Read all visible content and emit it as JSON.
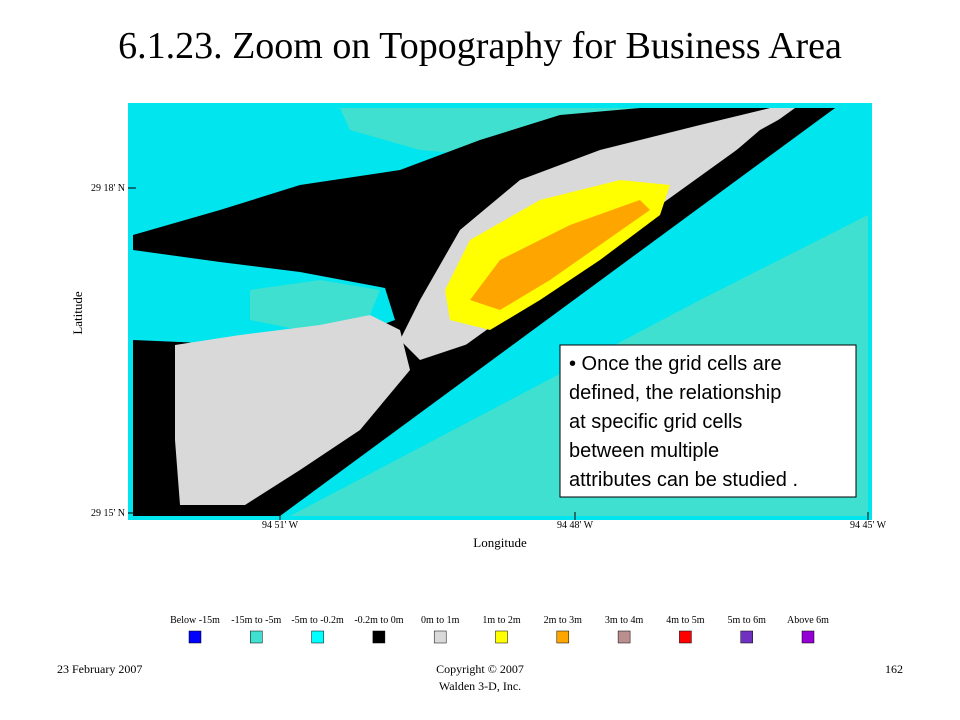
{
  "title": "6.1.23. Zoom on Topography for Business Area",
  "map": {
    "y_axis_label": "Latitude",
    "x_axis_label": "Longitude",
    "y_ticks": [
      "29 18' N",
      "29 15' N"
    ],
    "x_ticks": [
      "94 51' W",
      "94 48' W",
      "94 45' W"
    ]
  },
  "callout": {
    "lines": [
      "• Once the grid cells are",
      "defined, the relationship",
      "at specific grid cells",
      "between multiple",
      "attributes can be studied ."
    ]
  },
  "legend": [
    {
      "label": "Below -15m",
      "color": "#0000ff"
    },
    {
      "label": "-15m to -5m",
      "color": "#40e0d0"
    },
    {
      "label": "-5m to -0.2m",
      "color": "#00ffff"
    },
    {
      "label": "-0.2m to 0m",
      "color": "#000000"
    },
    {
      "label": "0m to 1m",
      "color": "#d9d9d9"
    },
    {
      "label": "1m to 2m",
      "color": "#ffff00"
    },
    {
      "label": "2m to 3m",
      "color": "#ffa500"
    },
    {
      "label": "3m to 4m",
      "color": "#bc8f8f"
    },
    {
      "label": "4m to 5m",
      "color": "#ff0000"
    },
    {
      "label": "5m to 6m",
      "color": "#7030c0"
    },
    {
      "label": "Above 6m",
      "color": "#9400d3"
    }
  ],
  "footer": {
    "date": "23 February 2007",
    "copyright": [
      "Copyright © 2007",
      "Walden 3-D, Inc."
    ],
    "page": "162"
  }
}
